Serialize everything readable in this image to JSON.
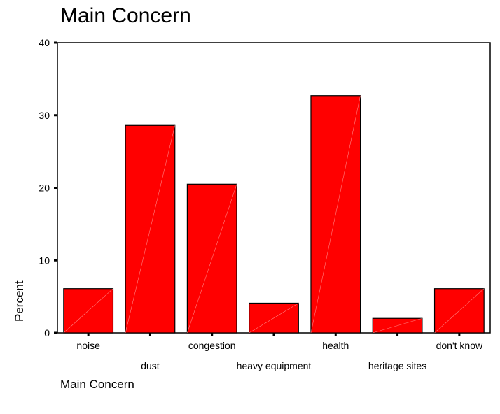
{
  "chart_data": {
    "type": "bar",
    "title": "Main Concern",
    "xlabel": "Main Concern",
    "ylabel": "Percent",
    "categories": [
      "noise",
      "dust",
      "congestion",
      "heavy equipment",
      "health",
      "heritage sites",
      "don't know"
    ],
    "values": [
      6.1,
      28.6,
      20.5,
      4.1,
      32.7,
      2.0,
      6.1
    ],
    "ylim": [
      0,
      40
    ],
    "yticks": [
      0,
      10,
      20,
      30,
      40
    ],
    "grid": false,
    "legend": "none",
    "bar_color": "#ff0000"
  }
}
